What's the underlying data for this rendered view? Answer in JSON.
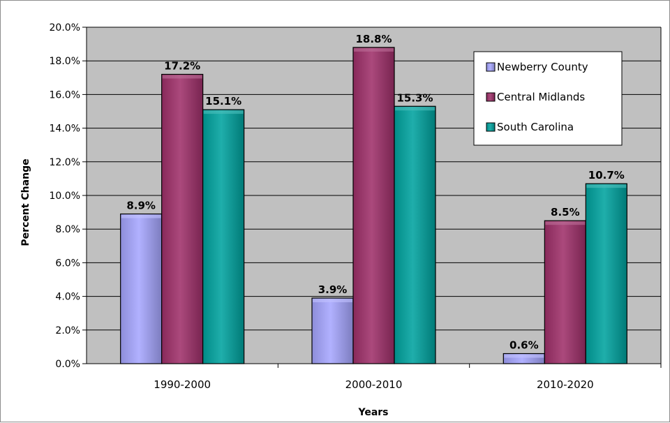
{
  "chart_data": {
    "type": "bar",
    "categories": [
      "1990-2000",
      "2000-2010",
      "2010-2020"
    ],
    "series": [
      {
        "name": "Newberry County",
        "values": [
          8.9,
          3.9,
          0.6
        ],
        "labels": [
          "8.9%",
          "3.9%",
          "0.6%"
        ],
        "color": "#a6a6ff"
      },
      {
        "name": "Central Midlands",
        "values": [
          17.2,
          18.8,
          8.5
        ],
        "labels": [
          "17.2%",
          "18.8%",
          "8.5%"
        ],
        "color": "#a0306a"
      },
      {
        "name": "South Carolina",
        "values": [
          15.1,
          15.3,
          10.7
        ],
        "labels": [
          "15.1%",
          "15.3%",
          "10.7%"
        ],
        "color": "#00a39f"
      }
    ],
    "xlabel": "Years",
    "ylabel": "Percent Change",
    "ylim": [
      0,
      20
    ],
    "yticks": [
      "0.0%",
      "2.0%",
      "4.0%",
      "6.0%",
      "8.0%",
      "10.0%",
      "12.0%",
      "14.0%",
      "16.0%",
      "18.0%",
      "20.0%"
    ],
    "grid": true,
    "legend": "top-right",
    "plot_background": "#c0c0c0"
  }
}
